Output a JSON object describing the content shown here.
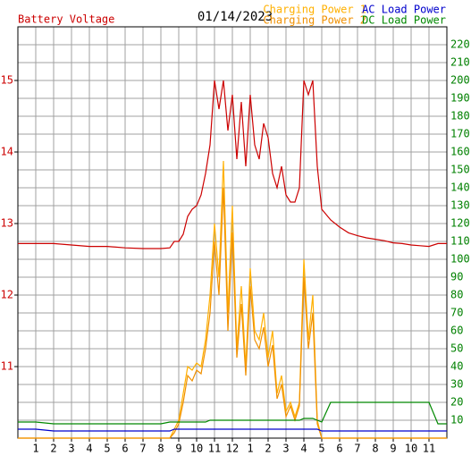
{
  "chart_data": {
    "type": "line",
    "title": "01/14/2023",
    "xlim": [
      0,
      24
    ],
    "xticks": [
      1,
      2,
      3,
      4,
      5,
      6,
      7,
      8,
      9,
      10,
      11,
      12,
      {
        "value": 13,
        "label": "1"
      },
      {
        "value": 14,
        "label": "2"
      },
      {
        "value": 15,
        "label": "3"
      },
      {
        "value": 16,
        "label": "4"
      },
      {
        "value": 17,
        "label": "5"
      },
      {
        "value": 18,
        "label": "6"
      },
      {
        "value": 19,
        "label": "7"
      },
      {
        "value": 20,
        "label": "8"
      },
      {
        "value": 21,
        "label": "9"
      },
      {
        "value": 22,
        "label": "10"
      },
      {
        "value": 23,
        "label": "11"
      }
    ],
    "ylim": [
      10,
      15.75
    ],
    "yticks": [
      11,
      12,
      13,
      14,
      15
    ],
    "y2lim": [
      0,
      230
    ],
    "y2ticks": [
      10,
      20,
      30,
      40,
      50,
      60,
      70,
      80,
      90,
      100,
      110,
      120,
      130,
      140,
      150,
      160,
      170,
      180,
      190,
      200,
      210,
      220
    ],
    "grid": true,
    "x": [
      0,
      1,
      2,
      3,
      4,
      5,
      6,
      7,
      8,
      8.5,
      8.75,
      9,
      9.25,
      9.5,
      9.75,
      10,
      10.25,
      10.5,
      10.75,
      11,
      11.25,
      11.5,
      11.75,
      12,
      12.25,
      12.5,
      12.75,
      13,
      13.25,
      13.5,
      13.75,
      14,
      14.25,
      14.5,
      14.75,
      15,
      15.25,
      15.5,
      15.75,
      16,
      16.25,
      16.5,
      16.75,
      17,
      17.5,
      18,
      18.5,
      19,
      19.5,
      20,
      20.5,
      21,
      21.5,
      22,
      22.5,
      23,
      23.5,
      24
    ],
    "series": [
      {
        "name": "Battery Voltage",
        "color": "#cc0000",
        "axis": "y",
        "values": [
          12.72,
          12.72,
          12.72,
          12.7,
          12.68,
          12.68,
          12.66,
          12.65,
          12.65,
          12.66,
          12.75,
          12.75,
          12.85,
          13.1,
          13.2,
          13.25,
          13.4,
          13.7,
          14.1,
          15.0,
          14.6,
          15.0,
          14.3,
          14.8,
          13.9,
          14.7,
          13.8,
          14.8,
          14.1,
          13.9,
          14.4,
          14.2,
          13.7,
          13.5,
          13.8,
          13.4,
          13.3,
          13.3,
          13.5,
          15.0,
          14.8,
          15.0,
          13.8,
          13.2,
          13.05,
          12.95,
          12.87,
          12.83,
          12.8,
          12.78,
          12.76,
          12.73,
          12.72,
          12.7,
          12.69,
          12.68,
          12.72,
          12.72
        ]
      },
      {
        "name": "Charging Power 1",
        "color": "#ffb000",
        "axis": "y2",
        "values": [
          0,
          0,
          0,
          0,
          0,
          0,
          0,
          0,
          0,
          0,
          5,
          10,
          25,
          40,
          38,
          42,
          40,
          55,
          80,
          120,
          90,
          155,
          70,
          130,
          50,
          85,
          40,
          95,
          60,
          55,
          70,
          45,
          60,
          25,
          35,
          15,
          20,
          12,
          20,
          100,
          55,
          80,
          10,
          0,
          0,
          0,
          0,
          0,
          0,
          0,
          0,
          0,
          0,
          0,
          0,
          0,
          0,
          0
        ]
      },
      {
        "name": "Charging Power 2",
        "color": "#f09000",
        "axis": "y2",
        "values": [
          0,
          0,
          0,
          0,
          0,
          0,
          0,
          0,
          0,
          0,
          3,
          8,
          20,
          35,
          32,
          38,
          36,
          50,
          70,
          110,
          80,
          140,
          60,
          115,
          45,
          75,
          35,
          85,
          55,
          50,
          62,
          40,
          52,
          22,
          30,
          12,
          18,
          10,
          18,
          90,
          50,
          70,
          8,
          0,
          0,
          0,
          0,
          0,
          0,
          0,
          0,
          0,
          0,
          0,
          0,
          0,
          0,
          0
        ]
      },
      {
        "name": "AC Load Power",
        "color": "#0000cc",
        "axis": "y2",
        "values": [
          5,
          5,
          4,
          4,
          4,
          4,
          4,
          4,
          4,
          4,
          5,
          5,
          5,
          5,
          5,
          5,
          5,
          5,
          5,
          5,
          5,
          5,
          5,
          5,
          5,
          5,
          5,
          5,
          5,
          5,
          5,
          5,
          5,
          5,
          5,
          5,
          5,
          5,
          5,
          5,
          5,
          5,
          5,
          4,
          4,
          4,
          4,
          4,
          4,
          4,
          4,
          4,
          4,
          4,
          4,
          4,
          4,
          4
        ]
      },
      {
        "name": "DC Load Power",
        "color": "#008800",
        "axis": "y2",
        "values": [
          9,
          9,
          8,
          8,
          8,
          8,
          8,
          8,
          8,
          9,
          9,
          9,
          9,
          9,
          9,
          9,
          9,
          9,
          10,
          10,
          10,
          10,
          10,
          10,
          10,
          10,
          10,
          10,
          10,
          10,
          10,
          10,
          10,
          10,
          10,
          10,
          10,
          10,
          10,
          11,
          11,
          11,
          10,
          9,
          20,
          20,
          20,
          20,
          20,
          20,
          20,
          20,
          20,
          20,
          20,
          20,
          8,
          8
        ]
      }
    ]
  }
}
